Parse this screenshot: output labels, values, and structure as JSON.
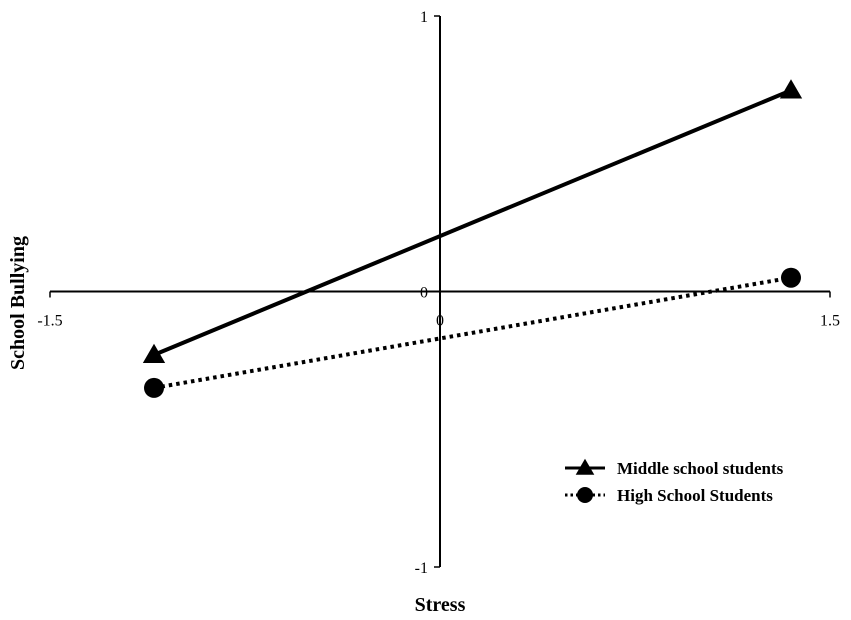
{
  "chart_data": {
    "type": "line",
    "title": "",
    "xlabel": "Stress",
    "ylabel": "School Bullying",
    "xlim": [
      -1.5,
      1.5
    ],
    "ylim": [
      -1,
      1
    ],
    "x_ticks": [
      "-1.5",
      "0",
      "1.5"
    ],
    "y_ticks": [
      "1",
      "0",
      "-1"
    ],
    "grid": false,
    "legend_position": "bottom-right",
    "series": [
      {
        "name": "Middle school students",
        "x": [
          -1.1,
          1.35
        ],
        "y": [
          -0.23,
          0.73
        ],
        "line_style": "solid",
        "marker": "triangle",
        "color": "#000000"
      },
      {
        "name": "High School Students",
        "x": [
          -1.1,
          1.35
        ],
        "y": [
          -0.35,
          0.05
        ],
        "line_style": "dotted",
        "marker": "circle",
        "color": "#000000"
      }
    ]
  }
}
